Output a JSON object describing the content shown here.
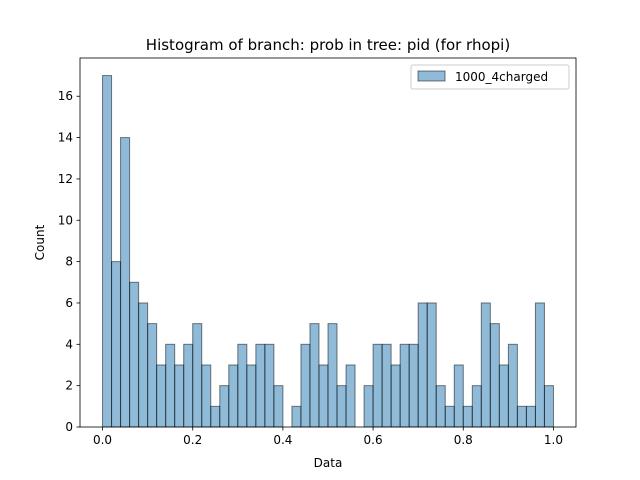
{
  "chart_data": {
    "type": "bar",
    "title": "Histogram of branch: prob in tree: pid (for rhopi)",
    "xlabel": "Data",
    "ylabel": "Count",
    "xlim": [
      -0.05,
      1.05
    ],
    "ylim": [
      0,
      17.85
    ],
    "bin_start": 0.0,
    "bin_width": 0.02,
    "values": [
      17,
      8,
      14,
      7,
      6,
      5,
      3,
      4,
      3,
      4,
      5,
      3,
      1,
      2,
      3,
      4,
      3,
      4,
      4,
      2,
      0,
      1,
      4,
      5,
      3,
      5,
      2,
      3,
      0,
      2,
      4,
      4,
      3,
      4,
      4,
      6,
      6,
      2,
      1,
      3,
      1,
      2,
      6,
      5,
      3,
      4,
      1,
      1,
      6,
      2
    ],
    "xticks": [
      "0.0",
      "0.2",
      "0.4",
      "0.6",
      "0.8",
      "1.0"
    ],
    "xtick_values": [
      0.0,
      0.2,
      0.4,
      0.6,
      0.8,
      1.0
    ],
    "yticks": [
      "0",
      "2",
      "4",
      "6",
      "8",
      "10",
      "12",
      "14",
      "16"
    ],
    "ytick_values": [
      0,
      2,
      4,
      6,
      8,
      10,
      12,
      14,
      16
    ],
    "legend": {
      "label": "1000_4charged",
      "position": "top-right"
    },
    "grid": false,
    "colors": {
      "bar_fill": "#1f77b4",
      "bar_edge": "#000000"
    }
  }
}
